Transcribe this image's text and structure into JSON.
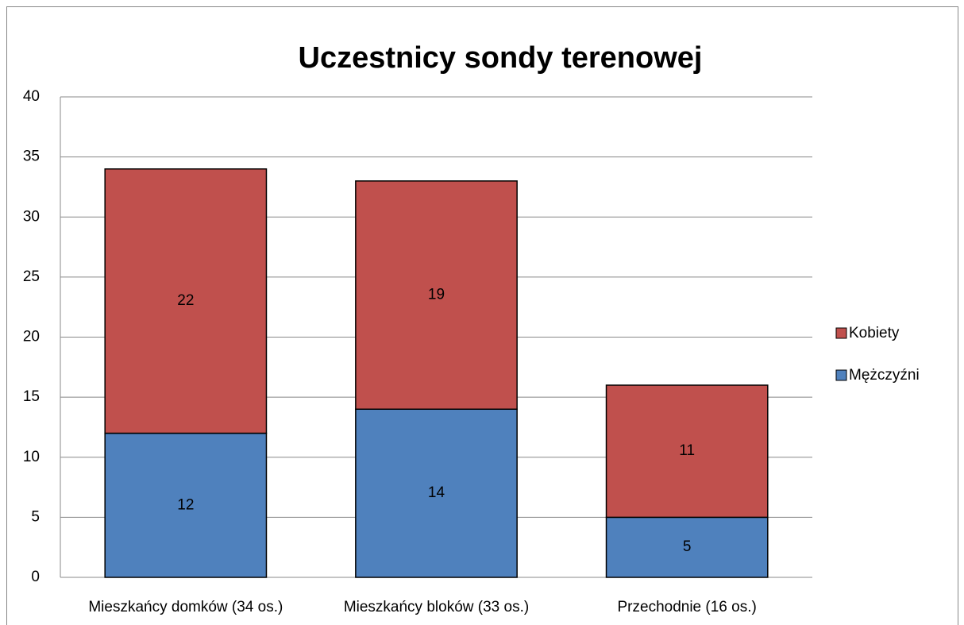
{
  "chart_data": {
    "type": "stacked_bar",
    "title": "Uczestnicy sondy terenowej",
    "categories": [
      "Mieszkańcy domków (34 os.)",
      "Mieszkańcy bloków (33 os.)",
      "Przechodnie (16 os.)"
    ],
    "series": [
      {
        "name": "Mężczyźni",
        "color": "#4f81bd",
        "values": [
          12,
          14,
          5
        ]
      },
      {
        "name": "Kobiety",
        "color": "#c0504d",
        "values": [
          22,
          19,
          11
        ]
      }
    ],
    "ylim": [
      0,
      40
    ],
    "yticks": [
      0,
      5,
      10,
      15,
      20,
      25,
      30,
      35,
      40
    ],
    "grid": true,
    "legend": "right"
  }
}
